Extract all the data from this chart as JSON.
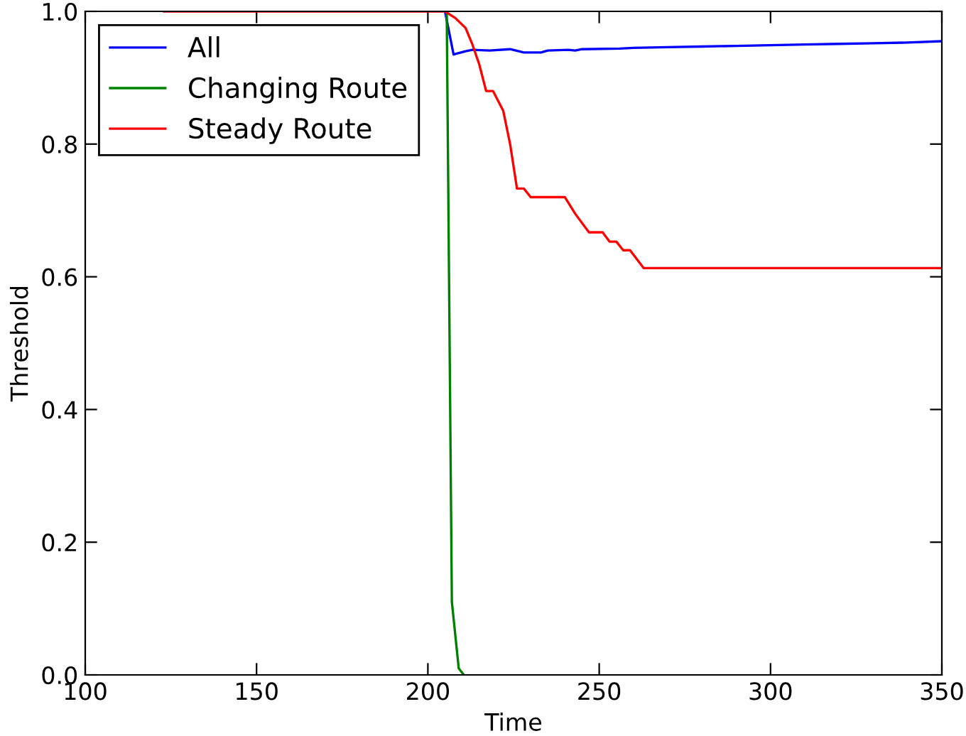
{
  "chart_data": {
    "type": "line",
    "xlabel": "Time",
    "ylabel": "Threshold",
    "xlim": [
      100,
      350
    ],
    "ylim": [
      0,
      1.0
    ],
    "xticks": [
      100,
      150,
      200,
      250,
      300,
      350
    ],
    "yticks": [
      {
        "value": 0,
        "label": "0.0"
      },
      0.2,
      0.4,
      0.6,
      0.8,
      {
        "value": 1,
        "label": "1.0"
      }
    ],
    "grid": false,
    "legend": "top left",
    "marker": "none",
    "line_style": "solid",
    "series": [
      {
        "name": "All",
        "color": "#0000ff",
        "x": [
          205,
          207.5,
          211,
          213,
          218,
          224,
          228,
          233,
          235,
          241,
          243,
          245,
          256,
          260,
          270,
          280,
          290,
          300,
          310,
          320,
          330,
          340,
          350
        ],
        "values": [
          1,
          0.935,
          0.94,
          0.942,
          0.941,
          0.943,
          0.938,
          0.938,
          0.941,
          0.942,
          0.941,
          0.943,
          0.944,
          0.945,
          0.946,
          0.947,
          0.948,
          0.949,
          0.95,
          0.951,
          0.952,
          0.953,
          0.955
        ]
      },
      {
        "name": "Changing Route",
        "color": "#008000",
        "x": [
          205.5,
          207,
          209,
          210.5
        ],
        "values": [
          1,
          0.11,
          0.01,
          0
        ]
      },
      {
        "name": "Steady Route",
        "color": "#ff0000",
        "x": [
          123,
          205,
          208,
          211,
          213,
          215,
          217,
          219,
          222,
          224,
          226,
          228,
          230,
          240,
          243,
          247,
          251,
          253,
          255,
          257,
          259,
          263,
          350
        ],
        "values": [
          1,
          1,
          0.99,
          0.975,
          0.95,
          0.92,
          0.88,
          0.88,
          0.85,
          0.8,
          0.733,
          0.733,
          0.72,
          0.72,
          0.695,
          0.667,
          0.667,
          0.653,
          0.653,
          0.64,
          0.64,
          0.613,
          0.613
        ]
      }
    ]
  }
}
